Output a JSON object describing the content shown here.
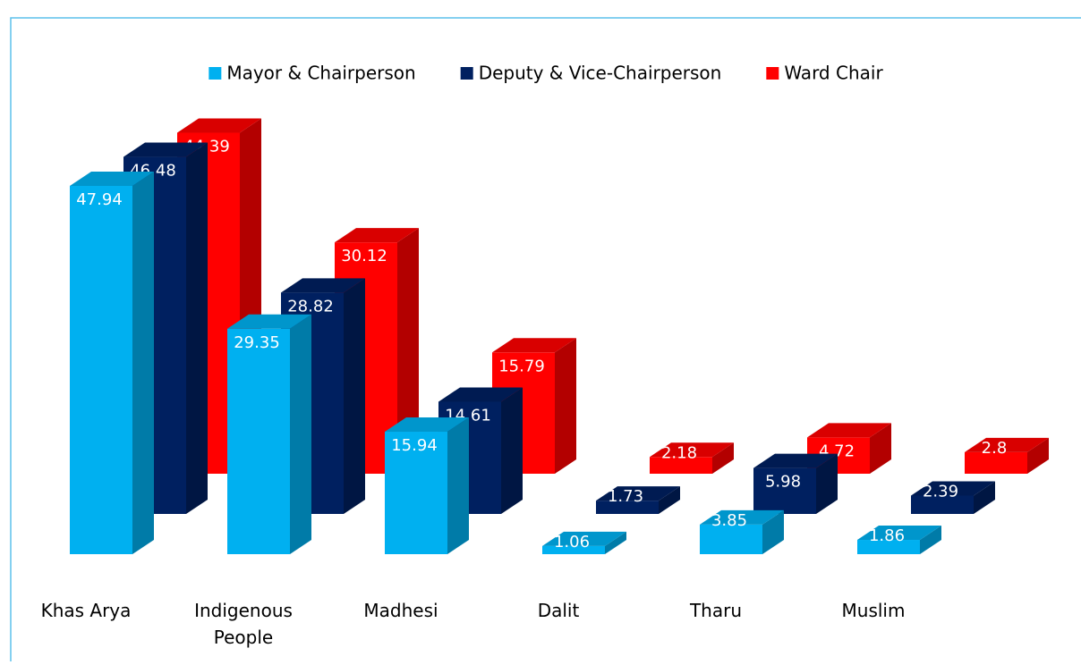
{
  "chart_data": {
    "type": "bar3d",
    "categories": [
      "Khas Arya",
      "Indigenous People",
      "Madhesi",
      "Dalit",
      "Tharu",
      "Muslim"
    ],
    "series": [
      {
        "name": "Mayor & Chairperson",
        "color": "#00b0f0",
        "values": [
          47.94,
          29.35,
          15.94,
          1.06,
          3.85,
          1.86
        ]
      },
      {
        "name": "Deputy & Vice-Chairperson",
        "color": "#002060",
        "values": [
          46.48,
          28.82,
          14.61,
          1.73,
          5.98,
          2.39
        ]
      },
      {
        "name": "Ward Chair",
        "color": "#ff0000",
        "values": [
          44.39,
          30.12,
          15.79,
          2.18,
          4.72,
          2.8
        ]
      }
    ],
    "legend": "top"
  }
}
